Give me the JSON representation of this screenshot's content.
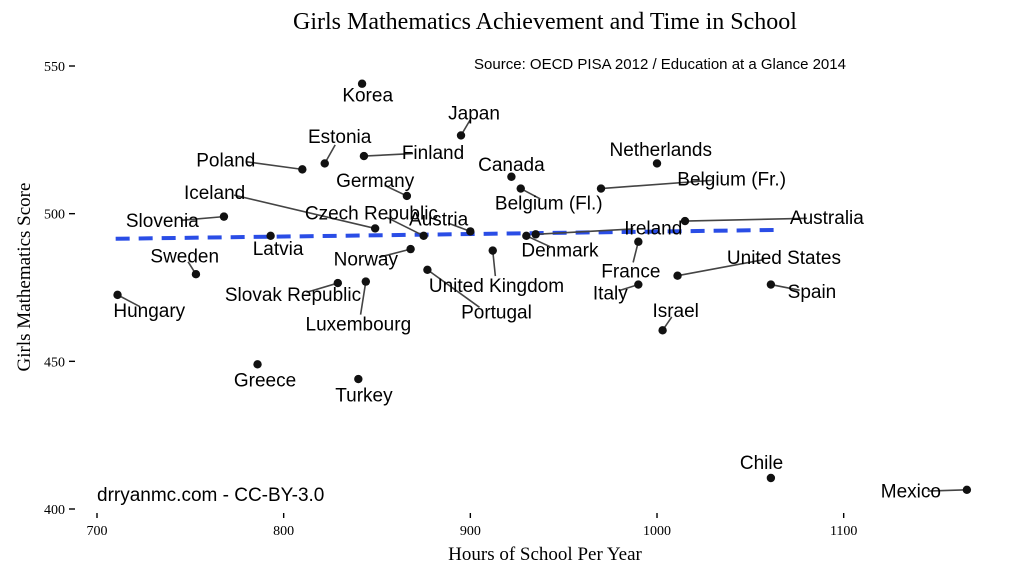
{
  "chart_data": {
    "type": "scatter",
    "title": "Girls Mathematics Achievement and Time in School",
    "xlabel": "Hours of School Per Year",
    "ylabel": "Girls Mathematics Score",
    "xlim": [
      700,
      1170
    ],
    "ylim": [
      400,
      550
    ],
    "xticks": [
      700,
      800,
      900,
      1000,
      1100
    ],
    "yticks": [
      400,
      450,
      500,
      550
    ],
    "grid": false,
    "source_note": "Source: OECD PISA 2012 / Education at a Glance 2014",
    "credit": "drryanmc.com - CC-BY-3.0",
    "trend_line": {
      "style": "dashed",
      "color": "#2a4de6",
      "x": [
        710,
        1065
      ],
      "y": [
        491.5,
        494.5
      ]
    },
    "points": [
      {
        "label": "Korea",
        "x": 842,
        "y": 544,
        "lx": 845,
        "ly": 540
      },
      {
        "label": "Japan",
        "x": 895,
        "y": 526.5,
        "lx": 902,
        "ly": 534
      },
      {
        "label": "Estonia",
        "x": 822,
        "y": 517,
        "lx": 830,
        "ly": 526
      },
      {
        "label": "Finland",
        "x": 843,
        "y": 519.5,
        "lx": 880,
        "ly": 520.5
      },
      {
        "label": "Poland",
        "x": 810,
        "y": 515,
        "lx": 769,
        "ly": 518
      },
      {
        "label": "Netherlands",
        "x": 1000,
        "y": 517,
        "lx": 1002,
        "ly": 521.5
      },
      {
        "label": "Canada",
        "x": 922,
        "y": 512.5,
        "lx": 922,
        "ly": 516.5
      },
      {
        "label": "Germany",
        "x": 866,
        "y": 506,
        "lx": 849,
        "ly": 511
      },
      {
        "label": "Belgium (Fl.)",
        "x": 927,
        "y": 508.5,
        "lx": 942,
        "ly": 503.5
      },
      {
        "label": "Belgium (Fr.)",
        "x": 970,
        "y": 508.5,
        "lx": 1040,
        "ly": 511.5
      },
      {
        "label": "Iceland",
        "x": 849,
        "y": 495,
        "lx": 763,
        "ly": 507
      },
      {
        "label": "Slovenia",
        "x": 768,
        "y": 499,
        "lx": 735,
        "ly": 497.5
      },
      {
        "label": "Czech Republic",
        "x": 875,
        "y": 492.5,
        "lx": 847,
        "ly": 500
      },
      {
        "label": "Austria",
        "x": 900,
        "y": 494,
        "lx": 883,
        "ly": 498
      },
      {
        "label": "Australia",
        "x": 1015,
        "y": 497.5,
        "lx": 1091,
        "ly": 498.5
      },
      {
        "label": "Ireland",
        "x": 935,
        "y": 493,
        "lx": 998,
        "ly": 495
      },
      {
        "label": "Latvia",
        "x": 793,
        "y": 492.5,
        "lx": 797,
        "ly": 488
      },
      {
        "label": "Denmark",
        "x": 930,
        "y": 492.5,
        "lx": 948,
        "ly": 487.5
      },
      {
        "label": "Norway",
        "x": 868,
        "y": 488,
        "lx": 844,
        "ly": 484.5
      },
      {
        "label": "Sweden",
        "x": 753,
        "y": 479.5,
        "lx": 747,
        "ly": 485.5
      },
      {
        "label": "United States",
        "x": 1011,
        "y": 479,
        "lx": 1068,
        "ly": 485
      },
      {
        "label": "France",
        "x": 990,
        "y": 490.5,
        "lx": 986,
        "ly": 480.5
      },
      {
        "label": "United Kingdom",
        "x": 912,
        "y": 487.5,
        "lx": 914,
        "ly": 475.5
      },
      {
        "label": "Slovak Republic",
        "x": 829,
        "y": 476.5,
        "lx": 805,
        "ly": 472.5
      },
      {
        "label": "Portugal",
        "x": 877,
        "y": 481,
        "lx": 914,
        "ly": 466.5
      },
      {
        "label": "Luxembourg",
        "x": 844,
        "y": 477,
        "lx": 840,
        "ly": 462.5
      },
      {
        "label": "Hungary",
        "x": 711,
        "y": 472.5,
        "lx": 728,
        "ly": 467
      },
      {
        "label": "Italy",
        "x": 990,
        "y": 476,
        "lx": 975,
        "ly": 473
      },
      {
        "label": "Spain",
        "x": 1061,
        "y": 476,
        "lx": 1083,
        "ly": 473.5
      },
      {
        "label": "Israel",
        "x": 1003,
        "y": 460.5,
        "lx": 1010,
        "ly": 467
      },
      {
        "label": "Greece",
        "x": 786,
        "y": 449,
        "lx": 790,
        "ly": 443.5
      },
      {
        "label": "Turkey",
        "x": 840,
        "y": 444,
        "lx": 843,
        "ly": 438.5
      },
      {
        "label": "Chile",
        "x": 1061,
        "y": 410.5,
        "lx": 1056,
        "ly": 415.5
      },
      {
        "label": "Mexico",
        "x": 1166,
        "y": 406.5,
        "lx": 1136,
        "ly": 406
      }
    ]
  }
}
